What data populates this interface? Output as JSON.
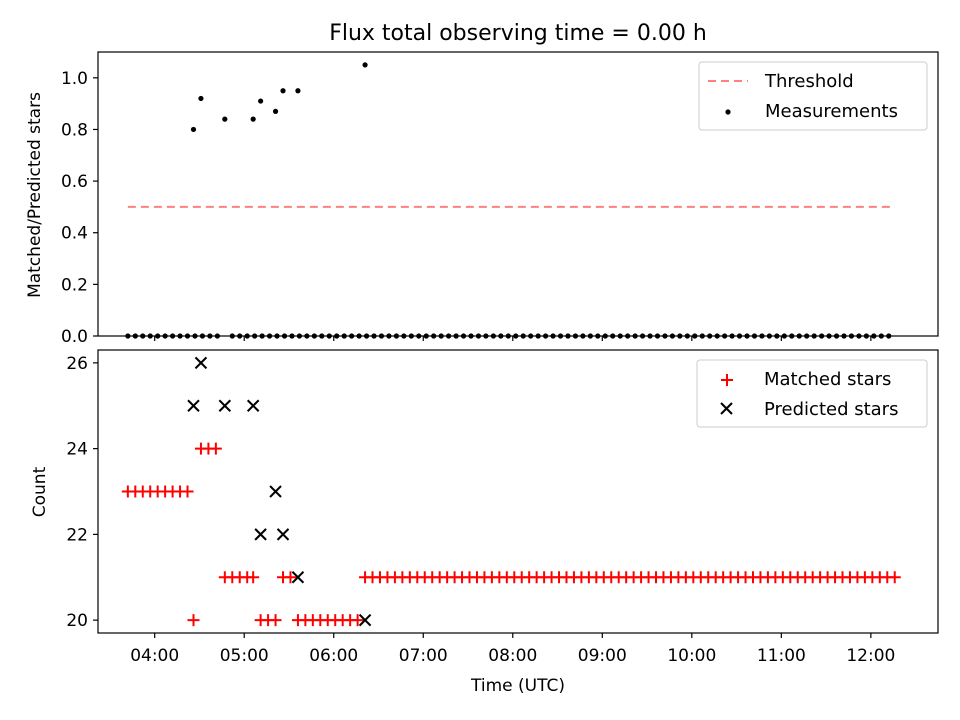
{
  "title": "Flux total observing time = 0.00 h",
  "xlabel": "Time (UTC)",
  "x_ticks": [
    "04:00",
    "05:00",
    "06:00",
    "07:00",
    "08:00",
    "09:00",
    "10:00",
    "11:00",
    "12:00"
  ],
  "colors": {
    "threshold": "#ff8080",
    "measurement": "#000000",
    "matched": "#ff0000",
    "predicted": "#000000"
  },
  "chart_data": [
    {
      "type": "scatter",
      "panel": "top",
      "ylabel": "Matched/Predicted stars",
      "ylim": [
        0,
        1.1
      ],
      "xlim": [
        "03:22",
        "12:45"
      ],
      "y_ticks": [
        "0.0",
        "0.2",
        "0.4",
        "0.6",
        "0.8",
        "1.0"
      ],
      "legend": {
        "location": "top-right",
        "entries": [
          "Threshold",
          "Measurements"
        ]
      },
      "threshold": {
        "name": "Threshold",
        "value": 0.5,
        "x_start": "03:42",
        "x_end": "12:13"
      },
      "series": [
        {
          "name": "Measurements",
          "points": [
            [
              "04:26",
              0.8
            ],
            [
              "04:31",
              0.92
            ],
            [
              "04:47",
              0.84
            ],
            [
              "05:06",
              0.84
            ],
            [
              "05:11",
              0.91
            ],
            [
              "05:21",
              0.87
            ],
            [
              "05:26",
              0.95
            ],
            [
              "05:36",
              0.95
            ],
            [
              "06:21",
              1.05
            ]
          ],
          "zero_points_start": "03:42",
          "zero_points_end": "12:16",
          "zero_points_step_min": 5,
          "zero_points_gaps": [
            "04:26",
            "04:31",
            "04:47",
            "05:06",
            "05:11",
            "05:21",
            "05:26",
            "05:36",
            "06:21"
          ]
        }
      ]
    },
    {
      "type": "scatter",
      "panel": "bottom",
      "ylabel": "Count",
      "ylim": [
        19.7,
        26.3
      ],
      "xlim": [
        "03:22",
        "12:45"
      ],
      "y_ticks": [
        "20",
        "22",
        "24",
        "26"
      ],
      "legend": {
        "location": "top-right",
        "entries": [
          "Matched stars",
          "Predicted stars"
        ]
      },
      "series": [
        {
          "name": "Matched stars",
          "points": [
            [
              "03:42",
              23
            ],
            [
              "03:47",
              23
            ],
            [
              "03:52",
              23
            ],
            [
              "03:57",
              23
            ],
            [
              "04:02",
              23
            ],
            [
              "04:07",
              23
            ],
            [
              "04:12",
              23
            ],
            [
              "04:17",
              23
            ],
            [
              "04:22",
              23
            ],
            [
              "04:26",
              20
            ],
            [
              "04:31",
              24
            ],
            [
              "04:36",
              24
            ],
            [
              "04:41",
              24
            ],
            [
              "04:47",
              21
            ],
            [
              "04:52",
              21
            ],
            [
              "04:57",
              21
            ],
            [
              "05:02",
              21
            ],
            [
              "05:06",
              21
            ],
            [
              "05:11",
              20
            ],
            [
              "05:16",
              20
            ],
            [
              "05:21",
              20
            ],
            [
              "05:26",
              21
            ],
            [
              "05:31",
              21
            ],
            [
              "05:36",
              20
            ],
            [
              "05:41",
              20
            ],
            [
              "05:46",
              20
            ],
            [
              "05:51",
              20
            ],
            [
              "05:56",
              20
            ],
            [
              "06:01",
              20
            ],
            [
              "06:06",
              20
            ],
            [
              "06:11",
              20
            ],
            [
              "06:16",
              20
            ]
          ],
          "constant_run": {
            "value": 21,
            "start": "06:21",
            "end": "12:16",
            "step_min": 5
          }
        },
        {
          "name": "Predicted stars",
          "points": [
            [
              "04:26",
              25
            ],
            [
              "04:31",
              26
            ],
            [
              "04:47",
              25
            ],
            [
              "05:06",
              25
            ],
            [
              "05:11",
              22
            ],
            [
              "05:21",
              23
            ],
            [
              "05:26",
              22
            ],
            [
              "05:36",
              21
            ],
            [
              "06:21",
              20
            ]
          ]
        }
      ]
    }
  ]
}
